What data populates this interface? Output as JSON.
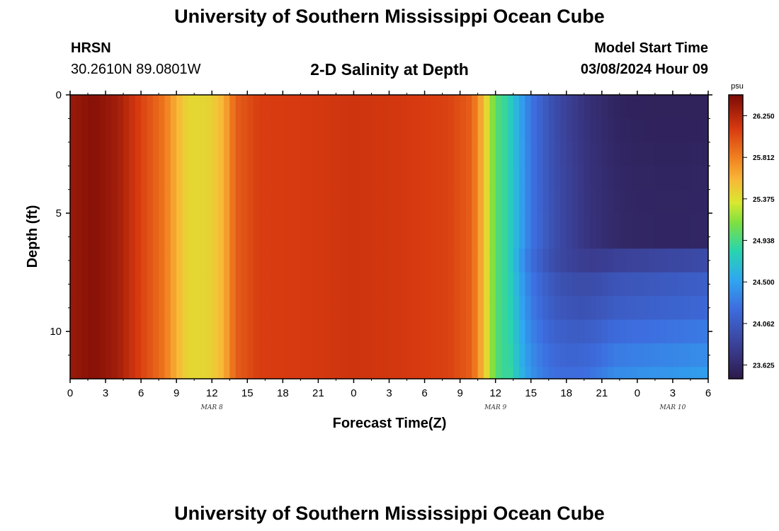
{
  "header": {
    "title": "University of Southern Mississippi Ocean Cube",
    "station": "HRSN",
    "coordinates": "30.2610N  89.0801W",
    "plot_title": "2-D Salinity at Depth",
    "model_start_label": "Model Start Time",
    "model_start_value": "03/08/2024 Hour 09"
  },
  "footer": {
    "title": "University of Southern Mississippi Ocean Cube"
  },
  "chart_data": {
    "type": "heatmap",
    "title": "2-D Salinity at Depth",
    "xlabel": "Forecast Time(Z)",
    "ylabel": "Depth (ft)",
    "x_tick_labels": [
      "0",
      "3",
      "6",
      "9",
      "12",
      "15",
      "18",
      "21",
      "0",
      "3",
      "6",
      "9",
      "12",
      "15",
      "18",
      "21",
      "0",
      "3",
      "6"
    ],
    "x_range_hours": [
      0,
      54
    ],
    "date_labels": [
      {
        "label": "MAR 8",
        "hour": 12
      },
      {
        "label": "MAR 9",
        "hour": 36
      },
      {
        "label": "MAR 10",
        "hour": 51
      }
    ],
    "y_ticks": [
      0,
      5,
      10
    ],
    "y_range_ft": [
      0,
      12
    ],
    "colorbar": {
      "unit": "psu",
      "ticks": [
        "26.250",
        "25.812",
        "25.375",
        "24.938",
        "24.500",
        "24.062",
        "23.625"
      ],
      "range": [
        23.48,
        26.47
      ]
    },
    "salinity_profile_surface": {
      "hours": [
        0,
        2,
        4,
        6,
        8,
        9,
        10,
        11,
        12,
        13,
        14,
        16,
        20,
        24,
        28,
        32,
        34,
        35,
        36,
        37,
        38,
        39,
        40,
        41,
        42,
        43,
        44,
        45,
        46,
        47,
        48,
        50,
        52,
        54
      ],
      "values": [
        26.35,
        26.42,
        26.32,
        26.08,
        25.85,
        25.6,
        25.42,
        25.42,
        25.45,
        25.6,
        25.95,
        26.1,
        26.12,
        26.15,
        26.13,
        26.08,
        25.95,
        25.55,
        25.0,
        24.85,
        24.6,
        24.35,
        24.2,
        24.05,
        23.95,
        23.85,
        23.75,
        23.7,
        23.62,
        23.58,
        23.56,
        23.55,
        23.55,
        23.56
      ]
    },
    "depth_layer_bottoms_ft": [
      1,
      2,
      3,
      4,
      5,
      6,
      6.5,
      7.5,
      8.5,
      9.5,
      10.5,
      11.5,
      12
    ],
    "depth_layer_late_values": [
      23.56,
      23.58,
      23.6,
      23.62,
      23.63,
      23.64,
      23.64,
      23.8,
      23.95,
      24.0,
      24.1,
      24.18,
      24.25
    ]
  }
}
